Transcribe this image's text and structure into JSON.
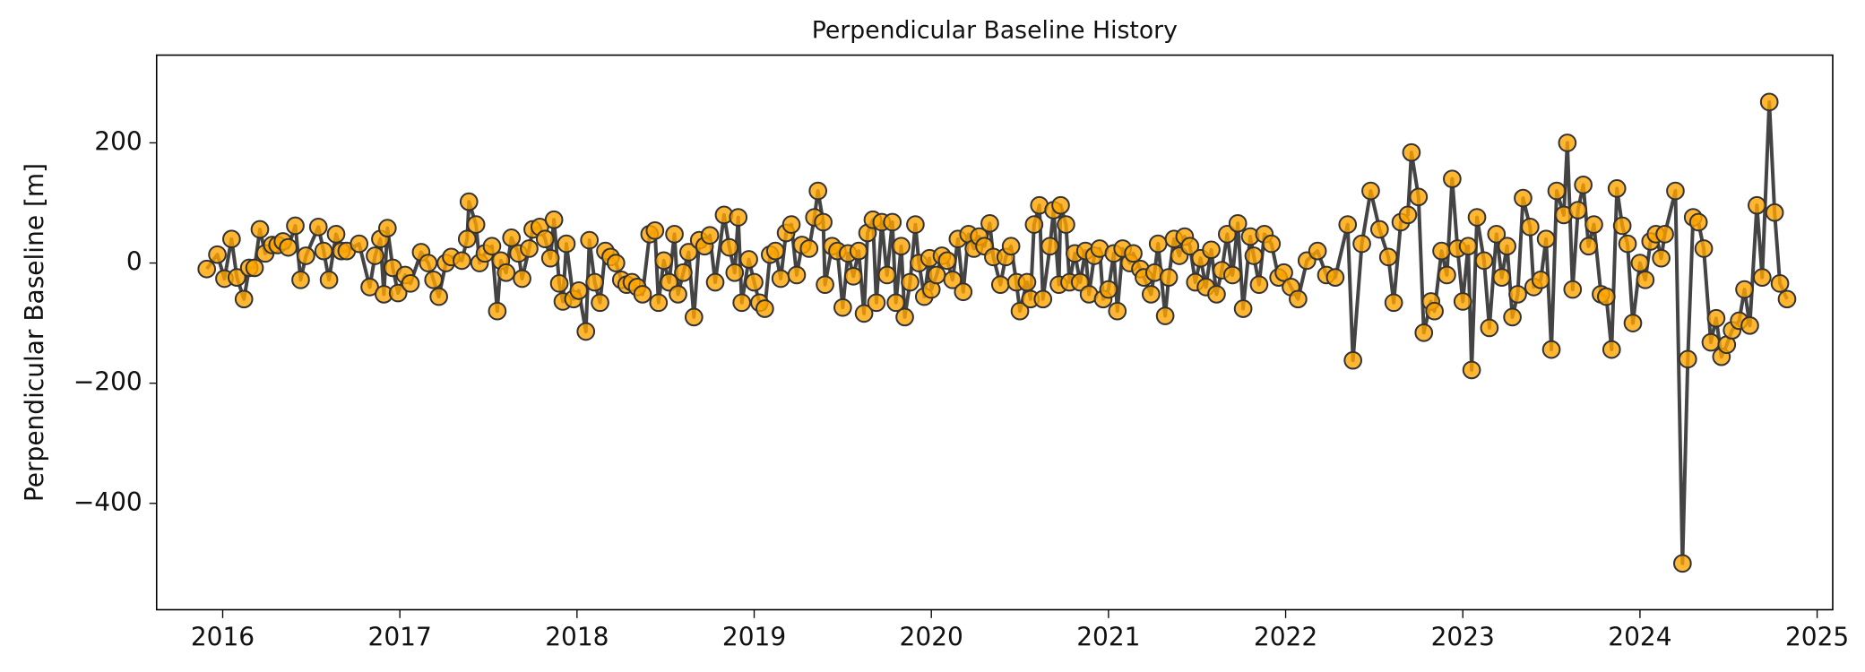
{
  "chart_data": {
    "type": "line",
    "title": "Perpendicular Baseline History",
    "ylabel": "Perpendicular Baseline [m]",
    "line_color": "#444444",
    "marker_color": "#ffa500",
    "marker_edge": "#333333",
    "xlim": [
      2015.627,
      2025.088
    ],
    "xticks": [
      2016,
      2017,
      2018,
      2019,
      2020,
      2021,
      2022,
      2023,
      2024,
      2025
    ],
    "ylim": [
      -577,
      346
    ],
    "yticks": [
      {
        "value": -400,
        "label": "−400"
      },
      {
        "value": -200,
        "label": "−200"
      },
      0,
      200
    ],
    "x": [
      2015.91,
      2015.97,
      2016.01,
      2016.05,
      2016.08,
      2016.12,
      2016.15,
      2016.18,
      2016.21,
      2016.24,
      2016.28,
      2016.31,
      2016.34,
      2016.37,
      2016.41,
      2016.44,
      2016.47,
      2016.54,
      2016.57,
      2016.6,
      2016.64,
      2016.67,
      2016.7,
      2016.77,
      2016.83,
      2016.86,
      2016.89,
      2016.91,
      2016.93,
      2016.96,
      2016.99,
      2017.03,
      2017.06,
      2017.12,
      2017.16,
      2017.19,
      2017.22,
      2017.26,
      2017.29,
      2017.35,
      2017.38,
      2017.39,
      2017.43,
      2017.45,
      2017.48,
      2017.52,
      2017.55,
      2017.57,
      2017.6,
      2017.63,
      2017.67,
      2017.69,
      2017.73,
      2017.75,
      2017.79,
      2017.82,
      2017.85,
      2017.87,
      2017.9,
      2017.92,
      2017.94,
      2017.98,
      2018.01,
      2018.05,
      2018.07,
      2018.1,
      2018.13,
      2018.16,
      2018.19,
      2018.22,
      2018.25,
      2018.28,
      2018.31,
      2018.34,
      2018.37,
      2018.41,
      2018.44,
      2018.46,
      2018.49,
      2018.52,
      2018.55,
      2018.57,
      2018.6,
      2018.63,
      2018.66,
      2018.69,
      2018.72,
      2018.75,
      2018.78,
      2018.83,
      2018.86,
      2018.89,
      2018.91,
      2018.93,
      2018.97,
      2019.0,
      2019.03,
      2019.06,
      2019.09,
      2019.12,
      2019.15,
      2019.18,
      2019.21,
      2019.24,
      2019.27,
      2019.31,
      2019.34,
      2019.36,
      2019.39,
      2019.4,
      2019.44,
      2019.47,
      2019.5,
      2019.53,
      2019.56,
      2019.59,
      2019.62,
      2019.64,
      2019.67,
      2019.69,
      2019.72,
      2019.75,
      2019.78,
      2019.8,
      2019.83,
      2019.85,
      2019.88,
      2019.91,
      2019.93,
      2019.96,
      2019.99,
      2020.0,
      2020.03,
      2020.06,
      2020.09,
      2020.12,
      2020.15,
      2020.18,
      2020.21,
      2020.24,
      2020.27,
      2020.3,
      2020.33,
      2020.35,
      2020.39,
      2020.42,
      2020.45,
      2020.48,
      2020.5,
      2020.54,
      2020.56,
      2020.58,
      2020.61,
      2020.63,
      2020.67,
      2020.69,
      2020.72,
      2020.73,
      2020.76,
      2020.78,
      2020.81,
      2020.84,
      2020.87,
      2020.89,
      2020.92,
      2020.95,
      2020.97,
      2021.0,
      2021.03,
      2021.05,
      2021.08,
      2021.12,
      2021.14,
      2021.18,
      2021.2,
      2021.24,
      2021.26,
      2021.28,
      2021.32,
      2021.34,
      2021.37,
      2021.4,
      2021.43,
      2021.46,
      2021.49,
      2021.52,
      2021.55,
      2021.58,
      2021.61,
      2021.64,
      2021.67,
      2021.7,
      2021.73,
      2021.76,
      2021.8,
      2021.82,
      2021.85,
      2021.88,
      2021.92,
      2021.96,
      2021.99,
      2022.03,
      2022.07,
      2022.12,
      2022.18,
      2022.23,
      2022.28,
      2022.35,
      2022.38,
      2022.43,
      2022.48,
      2022.53,
      2022.58,
      2022.61,
      2022.65,
      2022.69,
      2022.71,
      2022.75,
      2022.78,
      2022.82,
      2022.84,
      2022.88,
      2022.91,
      2022.94,
      2022.97,
      2023.0,
      2023.03,
      2023.05,
      2023.08,
      2023.12,
      2023.15,
      2023.19,
      2023.22,
      2023.25,
      2023.28,
      2023.31,
      2023.34,
      2023.38,
      2023.4,
      2023.44,
      2023.47,
      2023.5,
      2023.53,
      2023.57,
      2023.59,
      2023.62,
      2023.65,
      2023.68,
      2023.71,
      2023.74,
      2023.78,
      2023.81,
      2023.84,
      2023.87,
      2023.9,
      2023.93,
      2023.96,
      2024.0,
      2024.03,
      2024.06,
      2024.09,
      2024.12,
      2024.14,
      2024.2,
      2024.24,
      2024.27,
      2024.3,
      2024.33,
      2024.36,
      2024.4,
      2024.43,
      2024.46,
      2024.49,
      2024.52,
      2024.56,
      2024.59,
      2024.62,
      2024.66,
      2024.69,
      2024.73,
      2024.76,
      2024.79,
      2024.83
    ],
    "values": [
      -10,
      14,
      -26,
      40,
      -24,
      -60,
      -8,
      -8,
      56,
      16,
      30,
      30,
      36,
      26,
      62,
      -28,
      12,
      60,
      20,
      -28,
      48,
      20,
      20,
      32,
      -40,
      12,
      40,
      -52,
      58,
      -8,
      -50,
      -20,
      -34,
      18,
      0,
      -28,
      -56,
      0,
      10,
      4,
      40,
      102,
      64,
      0,
      16,
      28,
      -80,
      4,
      -16,
      42,
      16,
      -26,
      24,
      56,
      60,
      40,
      8,
      72,
      -34,
      -64,
      32,
      -60,
      -46,
      -114,
      38,
      -32,
      -66,
      20,
      10,
      0,
      -28,
      -36,
      -32,
      -40,
      -52,
      48,
      54,
      -66,
      4,
      -32,
      48,
      -52,
      -16,
      18,
      -90,
      38,
      28,
      46,
      -32,
      80,
      26,
      -16,
      76,
      -66,
      6,
      -32,
      -66,
      -76,
      14,
      20,
      -26,
      50,
      64,
      -20,
      30,
      24,
      76,
      120,
      68,
      -36,
      28,
      20,
      -74,
      16,
      -22,
      20,
      -84,
      50,
      72,
      -66,
      68,
      -20,
      68,
      -66,
      28,
      -90,
      -32,
      64,
      0,
      -56,
      8,
      -44,
      -20,
      12,
      4,
      -28,
      40,
      -48,
      48,
      24,
      44,
      28,
      66,
      10,
      -36,
      10,
      28,
      -32,
      -80,
      -32,
      -60,
      64,
      96,
      -60,
      28,
      88,
      -36,
      96,
      64,
      -32,
      16,
      -32,
      20,
      -52,
      12,
      24,
      -60,
      -44,
      16,
      -80,
      24,
      0,
      16,
      -10,
      -24,
      -52,
      -16,
      32,
      -88,
      -24,
      40,
      12,
      44,
      28,
      -32,
      8,
      -40,
      22,
      -52,
      -12,
      48,
      -20,
      66,
      -76,
      44,
      12,
      -36,
      48,
      32,
      -24,
      -16,
      -40,
      -60,
      4,
      20,
      -20,
      -24,
      64,
      -162,
      32,
      120,
      56,
      10,
      -66,
      68,
      80,
      184,
      110,
      -116,
      -64,
      -80,
      20,
      -20,
      140,
      24,
      -64,
      28,
      -178,
      76,
      4,
      -108,
      48,
      -24,
      28,
      -90,
      -52,
      108,
      60,
      -40,
      -28,
      40,
      -144,
      120,
      80,
      200,
      -44,
      88,
      130,
      28,
      64,
      -52,
      -56,
      -144,
      124,
      62,
      32,
      -100,
      0,
      -28,
      36,
      48,
      8,
      48,
      120,
      -500,
      -160,
      76,
      68,
      24,
      -132,
      -92,
      -156,
      -136,
      -112,
      -96,
      -44,
      -104,
      96,
      -24,
      268,
      84,
      -34,
      -60
    ]
  }
}
